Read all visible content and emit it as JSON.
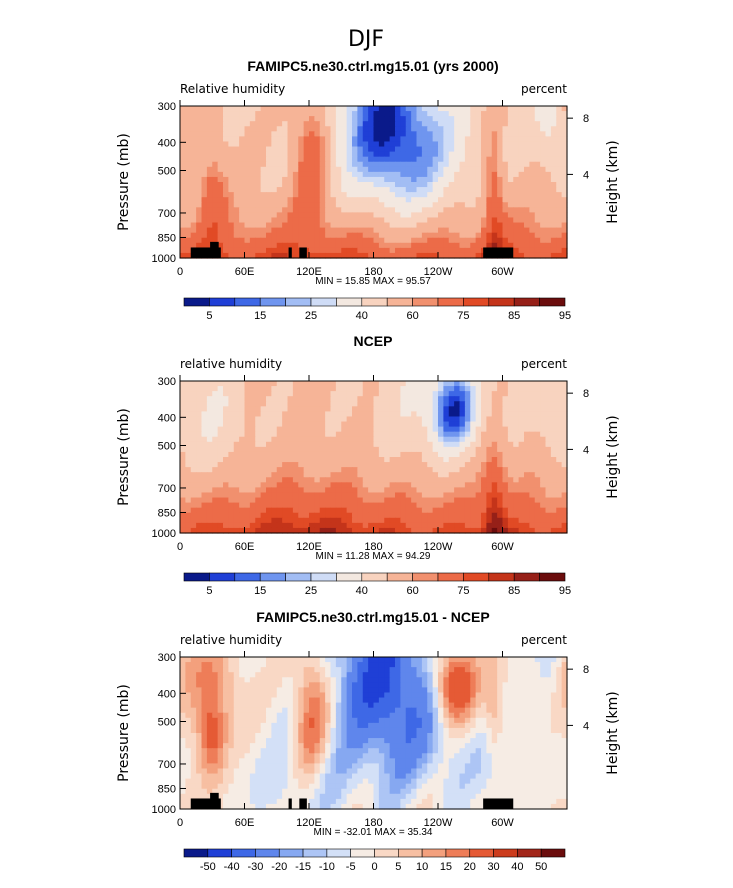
{
  "suptitle": "DJF",
  "colors": {
    "rh": [
      "#0a1a8a",
      "#1f3fd6",
      "#3e68e6",
      "#6f95ef",
      "#a2bdf4",
      "#cfdcf6",
      "#f3e8e0",
      "#f8d3bf",
      "#f6b497",
      "#f1906e",
      "#ec6b48",
      "#e14a25",
      "#c4341a",
      "#962018",
      "#6b0d0d"
    ],
    "diff": [
      "#0a1a8a",
      "#1f3fd6",
      "#3e68e6",
      "#5f86ec",
      "#86a8f1",
      "#adc5f5",
      "#d3e0f7",
      "#f6ece4",
      "#f9d8c5",
      "#f7bfa2",
      "#f3a07d",
      "#ee7d58",
      "#e55a35",
      "#cc3c1d",
      "#a2261a",
      "#6b0d0d"
    ]
  },
  "panels": [
    {
      "title": "FAMIPC5.ne30.ctrl.mg15.01 (yrs 2000)",
      "left_label": "Relative humidity",
      "right_label": "percent",
      "stats": "MIN =   15.85   MAX =   95.57",
      "colorbar_labels": [
        "5",
        "15",
        "25",
        "40",
        "60",
        "75",
        "85",
        "95"
      ],
      "palette": "rh",
      "terrain": true
    },
    {
      "title": "NCEP",
      "left_label": "relative humidity",
      "right_label": "percent",
      "stats": "MIN =   11.28   MAX =   94.29",
      "colorbar_labels": [
        "5",
        "15",
        "25",
        "40",
        "60",
        "75",
        "85",
        "95"
      ],
      "palette": "rh",
      "terrain": false
    },
    {
      "title": "FAMIPC5.ne30.ctrl.mg15.01 - NCEP",
      "left_label": "relative humidity",
      "right_label": "percent",
      "stats": "MIN =  -32.01   MAX =   35.34",
      "colorbar_labels": [
        "-50",
        "-40",
        "-30",
        "-20",
        "-15",
        "-10",
        "-5",
        "0",
        "5",
        "10",
        "15",
        "20",
        "30",
        "40",
        "50"
      ],
      "palette": "diff",
      "terrain": true
    }
  ],
  "chart_data": [
    {
      "type": "heatmap",
      "title": "FAMIPC5.ne30.ctrl.mg15.01 (yrs 2000)",
      "xlabel": "",
      "ylabel": "Pressure (mb)",
      "y2label": "Height (km)",
      "x_ticks": [
        "0",
        "60E",
        "120E",
        "180",
        "120W",
        "60W"
      ],
      "y_ticks": [
        "300",
        "400",
        "500",
        "700",
        "850",
        "1000"
      ],
      "y2_ticks": [
        "8",
        "4"
      ],
      "field": "Relative humidity",
      "units": "percent",
      "min": 15.85,
      "max": 95.57,
      "levels": [
        5,
        10,
        15,
        20,
        25,
        30,
        40,
        50,
        60,
        65,
        75,
        80,
        85,
        90,
        95
      ],
      "xlim": [
        0,
        360
      ],
      "ylim": [
        1000,
        300
      ],
      "grid": false
    },
    {
      "type": "heatmap",
      "title": "NCEP",
      "xlabel": "",
      "ylabel": "Pressure (mb)",
      "y2label": "Height (km)",
      "x_ticks": [
        "0",
        "60E",
        "120E",
        "180",
        "120W",
        "60W"
      ],
      "y_ticks": [
        "300",
        "400",
        "500",
        "700",
        "850",
        "1000"
      ],
      "y2_ticks": [
        "8",
        "4"
      ],
      "field": "relative humidity",
      "units": "percent",
      "min": 11.28,
      "max": 94.29,
      "levels": [
        5,
        10,
        15,
        20,
        25,
        30,
        40,
        50,
        60,
        65,
        75,
        80,
        85,
        90,
        95
      ],
      "xlim": [
        0,
        360
      ],
      "ylim": [
        1000,
        300
      ],
      "grid": false
    },
    {
      "type": "heatmap",
      "title": "FAMIPC5.ne30.ctrl.mg15.01 - NCEP",
      "xlabel": "",
      "ylabel": "Pressure (mb)",
      "y2label": "Height (km)",
      "x_ticks": [
        "0",
        "60E",
        "120E",
        "180",
        "120W",
        "60W"
      ],
      "y_ticks": [
        "300",
        "400",
        "500",
        "700",
        "850",
        "1000"
      ],
      "y2_ticks": [
        "8",
        "4"
      ],
      "field": "relative humidity",
      "units": "percent",
      "min": -32.01,
      "max": 35.34,
      "levels": [
        -50,
        -40,
        -30,
        -20,
        -15,
        -10,
        -5,
        0,
        5,
        10,
        15,
        20,
        30,
        40,
        50
      ],
      "xlim": [
        0,
        360
      ],
      "ylim": [
        1000,
        300
      ],
      "grid": false
    }
  ]
}
